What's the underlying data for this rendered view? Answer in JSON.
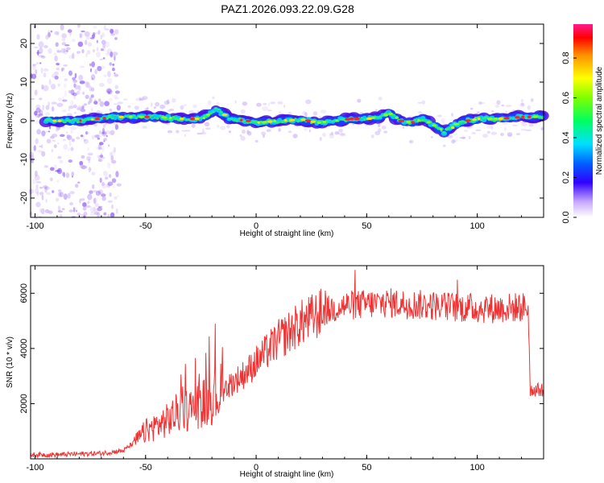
{
  "title": "PAZ1.2026.093.22.09.G28",
  "chart_data": [
    {
      "type": "heatmap",
      "xlabel": "Height of straight line (km)",
      "ylabel": "Frequency (Hz)",
      "xlim": [
        -102,
        130
      ],
      "ylim": [
        -25,
        25
      ],
      "xticks": [
        -100,
        -50,
        0,
        50,
        100
      ],
      "yticks": [
        -20,
        -10,
        0,
        10,
        20
      ],
      "colorbar": {
        "label": "Normalized spectral amplitude",
        "range": [
          0,
          0.97
        ],
        "ticks": [
          "0.0",
          "0.2",
          "0.4",
          "0.6",
          "0.8"
        ],
        "tick_values": [
          0.0,
          0.2,
          0.4,
          0.6,
          0.8
        ]
      },
      "ridge": {
        "x": [
          -95,
          -90,
          -80,
          -72,
          -65,
          -55,
          -45,
          -35,
          -25,
          -18,
          -12,
          -5,
          0,
          10,
          20,
          28,
          35,
          42,
          50,
          56,
          60,
          65,
          70,
          75,
          80,
          85,
          90,
          95,
          100,
          110,
          120,
          130
        ],
        "frequency": [
          0,
          0,
          0,
          0.5,
          1,
          1,
          1,
          0.5,
          0.5,
          3,
          0.5,
          0,
          -0.5,
          0,
          0.3,
          -0.5,
          0,
          0.5,
          0.5,
          1,
          2,
          0,
          -0.5,
          0.5,
          -1,
          -3,
          -1,
          0,
          0.5,
          0.5,
          1,
          1
        ]
      }
    },
    {
      "type": "line",
      "xlabel": "Height of straight line (km)",
      "ylabel": "SNR (10 * v/v)",
      "xlim": [
        -102,
        130
      ],
      "ylim": [
        0,
        7000
      ],
      "xticks": [
        -100,
        -50,
        0,
        50,
        100
      ],
      "yticks": [
        2000,
        4000,
        6000
      ],
      "color": "#f03232",
      "series": [
        {
          "x": [
            -102,
            -90,
            -80,
            -70,
            -60,
            -55,
            -50,
            -45,
            -40,
            -35,
            -30,
            -25,
            -20,
            -15,
            -10,
            -5,
            0,
            5,
            10,
            15,
            20,
            25,
            30,
            35,
            40,
            50,
            60,
            70,
            80,
            90,
            100,
            110,
            120,
            123,
            124,
            130
          ],
          "values": [
            150,
            150,
            180,
            200,
            300,
            600,
            1000,
            1200,
            1400,
            1700,
            1800,
            2000,
            2200,
            2500,
            2800,
            3100,
            3500,
            3900,
            4300,
            4600,
            4900,
            5100,
            5300,
            5450,
            5550,
            5600,
            5650,
            5600,
            5550,
            5500,
            5450,
            5450,
            5500,
            5500,
            2500,
            2500
          ]
        }
      ]
    }
  ]
}
